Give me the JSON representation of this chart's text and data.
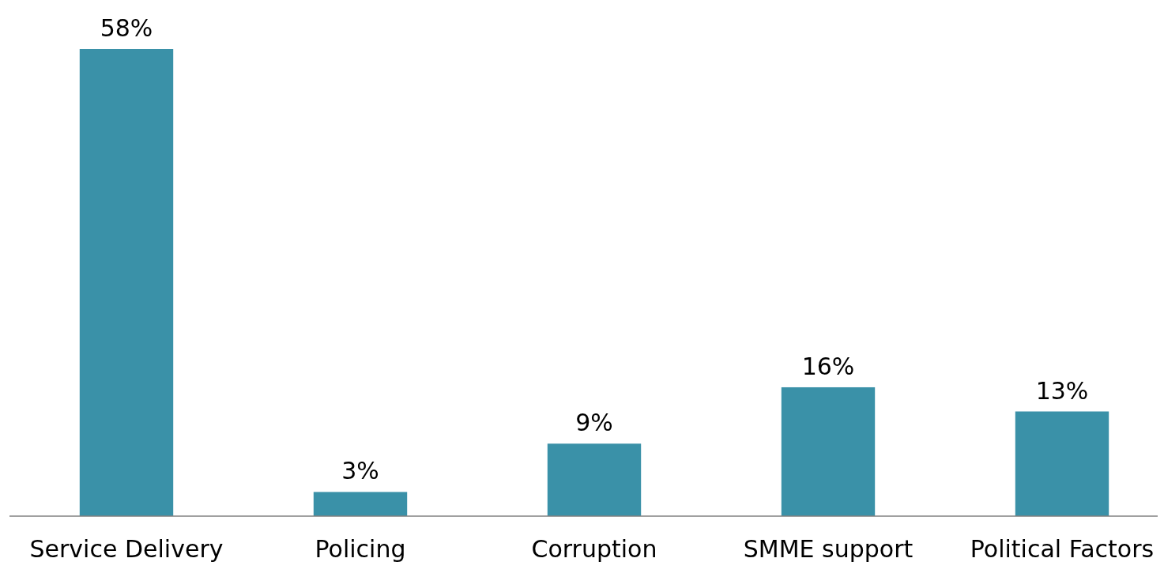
{
  "chart_data": {
    "type": "bar",
    "categories": [
      "Service Delivery",
      "Policing",
      "Corruption",
      "SMME support",
      "Political Factors"
    ],
    "values": [
      58,
      3,
      9,
      16,
      13
    ],
    "value_labels": [
      "58%",
      "3%",
      "9%",
      "16%",
      "13%"
    ],
    "color": "#3a91a8"
  }
}
